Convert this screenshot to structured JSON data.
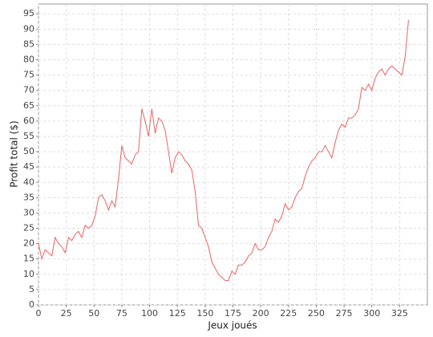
{
  "chart_data": {
    "type": "line",
    "x_label": "Jeux joués",
    "y_label": "Profit total ($)",
    "x": [
      0,
      3,
      6,
      9,
      12,
      15,
      18,
      21,
      24,
      27,
      30,
      33,
      36,
      39,
      42,
      45,
      48,
      51,
      54,
      57,
      60,
      63,
      66,
      69,
      72,
      75,
      78,
      81,
      84,
      87,
      90,
      93,
      96,
      99,
      102,
      105,
      108,
      111,
      114,
      117,
      120,
      123,
      126,
      129,
      132,
      135,
      138,
      141,
      144,
      147,
      150,
      153,
      156,
      159,
      162,
      165,
      168,
      171,
      174,
      177,
      180,
      183,
      186,
      189,
      192,
      195,
      198,
      201,
      204,
      207,
      210,
      213,
      216,
      219,
      222,
      225,
      228,
      231,
      234,
      237,
      240,
      243,
      246,
      249,
      252,
      255,
      258,
      261,
      264,
      267,
      270,
      273,
      276,
      279,
      282,
      285,
      288,
      291,
      294,
      297,
      300,
      303,
      306,
      309,
      312,
      315,
      318,
      321,
      324,
      327,
      330,
      333
    ],
    "series": [
      {
        "name": "Profit",
        "color": "#f06060",
        "values": [
          20,
          15,
          18,
          17,
          16,
          22,
          20,
          19,
          17,
          22,
          21,
          23,
          24,
          22,
          26,
          25,
          26,
          29,
          35,
          36,
          34,
          31,
          34,
          32,
          41,
          52,
          48,
          47,
          46,
          49,
          50,
          64,
          60,
          55,
          64,
          56,
          61,
          60,
          57,
          50,
          43,
          48,
          50,
          49,
          47,
          46,
          44,
          37,
          26,
          25,
          22,
          19,
          14,
          12,
          10,
          9,
          8,
          8,
          11,
          10,
          13,
          13,
          14,
          16,
          17,
          20,
          18,
          18,
          19,
          22,
          24,
          28,
          27,
          29,
          33,
          31,
          32,
          35,
          37,
          38,
          42,
          45,
          47,
          48,
          50,
          50,
          52,
          50,
          48,
          53,
          57,
          59,
          58,
          61,
          61,
          62,
          64,
          71,
          70,
          72,
          70,
          74,
          76,
          77,
          75,
          77,
          78,
          77,
          76,
          75,
          81,
          93
        ]
      }
    ],
    "xlim": [
      0,
      350
    ],
    "ylim": [
      0,
      98.2
    ],
    "xticks": [
      0,
      25,
      50,
      75,
      100,
      125,
      150,
      175,
      200,
      225,
      250,
      275,
      300,
      325
    ],
    "yticks": [
      0,
      5,
      10,
      15,
      20,
      25,
      30,
      35,
      40,
      45,
      50,
      55,
      60,
      65,
      70,
      75,
      80,
      85,
      90,
      95
    ],
    "grid": true
  }
}
